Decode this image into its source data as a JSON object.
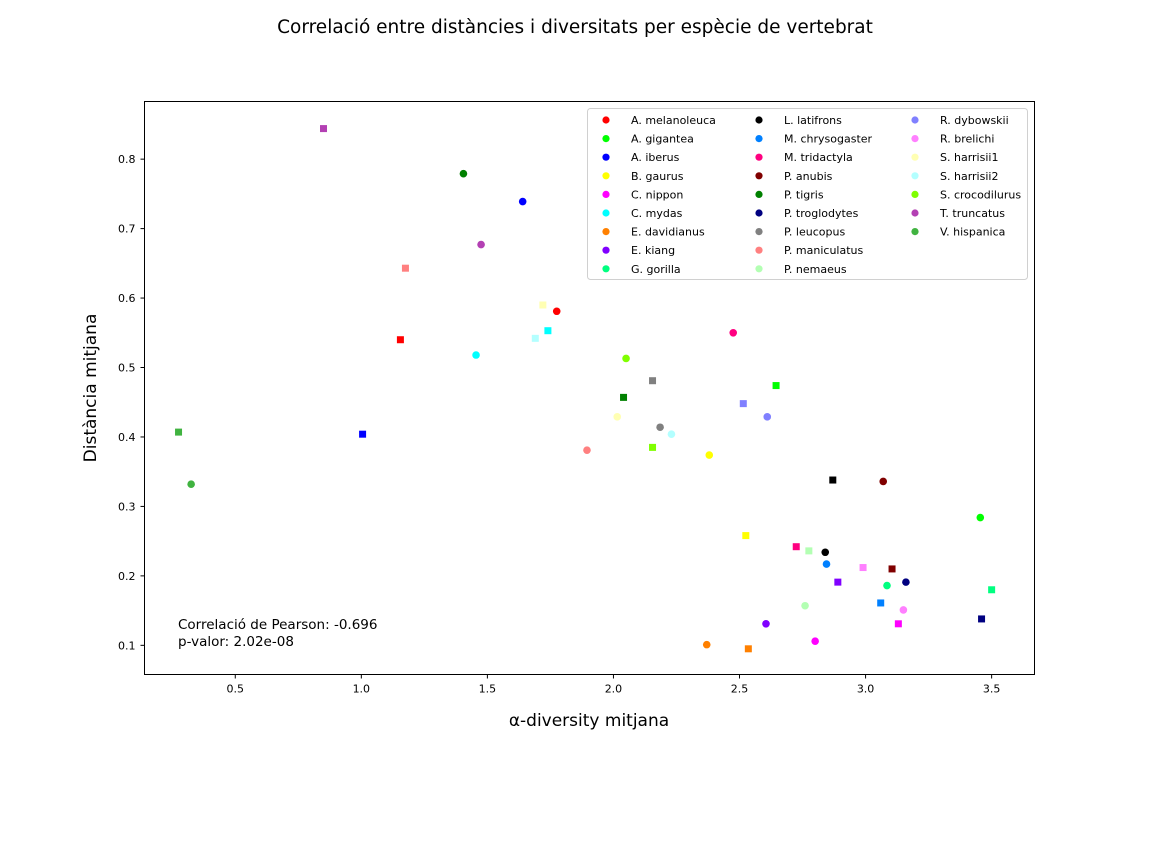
{
  "chart_data": {
    "type": "scatter",
    "title": "Correlació entre distàncies i diversitats per espècie de vertebrat",
    "xlabel": "α-diversity mitjana",
    "ylabel": "Distància mitjana",
    "xlim": [
      0.14,
      3.67
    ],
    "ylim": [
      0.058,
      0.883
    ],
    "xticks": [
      {
        "value": 0.5,
        "label": "0.5"
      },
      {
        "value": 1.0,
        "label": "1.0"
      },
      {
        "value": 1.5,
        "label": "1.5"
      },
      {
        "value": 2.0,
        "label": "2.0"
      },
      {
        "value": 2.5,
        "label": "2.5"
      },
      {
        "value": 3.0,
        "label": "3.0"
      },
      {
        "value": 3.5,
        "label": "3.5"
      }
    ],
    "yticks": [
      {
        "value": 0.1,
        "label": "0.1"
      },
      {
        "value": 0.2,
        "label": "0.2"
      },
      {
        "value": 0.3,
        "label": "0.3"
      },
      {
        "value": 0.4,
        "label": "0.4"
      },
      {
        "value": 0.5,
        "label": "0.5"
      },
      {
        "value": 0.6,
        "label": "0.6"
      },
      {
        "value": 0.7,
        "label": "0.7"
      },
      {
        "value": 0.8,
        "label": "0.8"
      }
    ],
    "grid": false,
    "legend_position": "top-right",
    "legend_columns": 3,
    "annotations": [
      "Correlació de Pearson: -0.696",
      "p-valor: 2.02e-08"
    ],
    "marker_shapes": [
      "circle",
      "square"
    ],
    "series": [
      {
        "name": "A. melanoleuca",
        "color": "#ff0000",
        "points": [
          {
            "x": 1.775,
            "y": 0.581,
            "marker": "circle"
          },
          {
            "x": 1.155,
            "y": 0.54,
            "marker": "square"
          }
        ]
      },
      {
        "name": "A. gigantea",
        "color": "#00ff00",
        "points": [
          {
            "x": 3.455,
            "y": 0.284,
            "marker": "circle"
          },
          {
            "x": 2.645,
            "y": 0.474,
            "marker": "square"
          }
        ]
      },
      {
        "name": "A. iberus",
        "color": "#0000ff",
        "points": [
          {
            "x": 1.64,
            "y": 0.739,
            "marker": "circle"
          },
          {
            "x": 1.005,
            "y": 0.404,
            "marker": "square"
          }
        ]
      },
      {
        "name": "B. gaurus",
        "color": "#ffff00",
        "points": [
          {
            "x": 2.38,
            "y": 0.374,
            "marker": "circle"
          },
          {
            "x": 2.525,
            "y": 0.258,
            "marker": "square"
          }
        ]
      },
      {
        "name": "C. nippon",
        "color": "#ff00ff",
        "points": [
          {
            "x": 2.8,
            "y": 0.106,
            "marker": "circle"
          },
          {
            "x": 3.13,
            "y": 0.131,
            "marker": "square"
          }
        ]
      },
      {
        "name": "C. mydas",
        "color": "#00ffff",
        "points": [
          {
            "x": 1.455,
            "y": 0.518,
            "marker": "circle"
          },
          {
            "x": 1.74,
            "y": 0.553,
            "marker": "square"
          }
        ]
      },
      {
        "name": "E. davidianus",
        "color": "#ff8000",
        "points": [
          {
            "x": 2.37,
            "y": 0.101,
            "marker": "circle"
          },
          {
            "x": 2.535,
            "y": 0.095,
            "marker": "square"
          }
        ]
      },
      {
        "name": "E. kiang",
        "color": "#8000ff",
        "points": [
          {
            "x": 2.605,
            "y": 0.131,
            "marker": "circle"
          },
          {
            "x": 2.89,
            "y": 0.191,
            "marker": "square"
          }
        ]
      },
      {
        "name": "G. gorilla",
        "color": "#00ff80",
        "points": [
          {
            "x": 3.085,
            "y": 0.186,
            "marker": "circle"
          },
          {
            "x": 3.5,
            "y": 0.18,
            "marker": "square"
          }
        ]
      },
      {
        "name": "L. latifrons",
        "color": "#000000",
        "points": [
          {
            "x": 2.84,
            "y": 0.234,
            "marker": "circle"
          },
          {
            "x": 2.87,
            "y": 0.338,
            "marker": "square"
          }
        ]
      },
      {
        "name": "M. chrysogaster",
        "color": "#0080ff",
        "points": [
          {
            "x": 2.845,
            "y": 0.217,
            "marker": "circle"
          },
          {
            "x": 3.06,
            "y": 0.161,
            "marker": "square"
          }
        ]
      },
      {
        "name": "M. tridactyla",
        "color": "#ff0080",
        "points": [
          {
            "x": 2.475,
            "y": 0.55,
            "marker": "circle"
          },
          {
            "x": 2.725,
            "y": 0.242,
            "marker": "square"
          }
        ]
      },
      {
        "name": "P. anubis",
        "color": "#800000",
        "points": [
          {
            "x": 3.07,
            "y": 0.336,
            "marker": "circle"
          },
          {
            "x": 3.105,
            "y": 0.21,
            "marker": "square"
          }
        ]
      },
      {
        "name": "P. tigris",
        "color": "#008000",
        "points": [
          {
            "x": 1.405,
            "y": 0.779,
            "marker": "circle"
          },
          {
            "x": 2.04,
            "y": 0.457,
            "marker": "square"
          }
        ]
      },
      {
        "name": "P. troglodytes",
        "color": "#000080",
        "points": [
          {
            "x": 3.16,
            "y": 0.191,
            "marker": "circle"
          },
          {
            "x": 3.46,
            "y": 0.138,
            "marker": "square"
          }
        ]
      },
      {
        "name": "P. leucopus",
        "color": "#808080",
        "points": [
          {
            "x": 2.185,
            "y": 0.414,
            "marker": "circle"
          },
          {
            "x": 2.155,
            "y": 0.481,
            "marker": "square"
          }
        ]
      },
      {
        "name": "P. maniculatus",
        "color": "#ff8080",
        "points": [
          {
            "x": 1.895,
            "y": 0.381,
            "marker": "circle"
          },
          {
            "x": 1.175,
            "y": 0.643,
            "marker": "square"
          }
        ]
      },
      {
        "name": "P. nemaeus",
        "color": "#b3ffb3",
        "points": [
          {
            "x": 2.76,
            "y": 0.157,
            "marker": "circle"
          },
          {
            "x": 2.775,
            "y": 0.236,
            "marker": "square"
          }
        ]
      },
      {
        "name": "R. dybowskii",
        "color": "#8080ff",
        "points": [
          {
            "x": 2.61,
            "y": 0.429,
            "marker": "circle"
          },
          {
            "x": 2.515,
            "y": 0.448,
            "marker": "square"
          }
        ]
      },
      {
        "name": "R. brelichi",
        "color": "#ff80ff",
        "points": [
          {
            "x": 3.15,
            "y": 0.151,
            "marker": "circle"
          },
          {
            "x": 2.99,
            "y": 0.212,
            "marker": "square"
          }
        ]
      },
      {
        "name": "S. harrisii1",
        "color": "#ffffb3",
        "points": [
          {
            "x": 2.015,
            "y": 0.429,
            "marker": "circle"
          },
          {
            "x": 1.72,
            "y": 0.59,
            "marker": "square"
          }
        ]
      },
      {
        "name": "S. harrisii2",
        "color": "#b3ffff",
        "points": [
          {
            "x": 2.23,
            "y": 0.404,
            "marker": "circle"
          },
          {
            "x": 1.69,
            "y": 0.542,
            "marker": "square"
          }
        ]
      },
      {
        "name": "S. crocodilurus",
        "color": "#80ff00",
        "points": [
          {
            "x": 2.05,
            "y": 0.513,
            "marker": "circle"
          },
          {
            "x": 2.155,
            "y": 0.385,
            "marker": "square"
          }
        ]
      },
      {
        "name": "T. truncatus",
        "color": "#b340b3",
        "points": [
          {
            "x": 1.475,
            "y": 0.677,
            "marker": "circle"
          },
          {
            "x": 0.85,
            "y": 0.844,
            "marker": "square"
          }
        ]
      },
      {
        "name": "V. hispanica",
        "color": "#40b340",
        "points": [
          {
            "x": 0.325,
            "y": 0.332,
            "marker": "circle"
          },
          {
            "x": 0.275,
            "y": 0.407,
            "marker": "square"
          }
        ]
      }
    ]
  }
}
